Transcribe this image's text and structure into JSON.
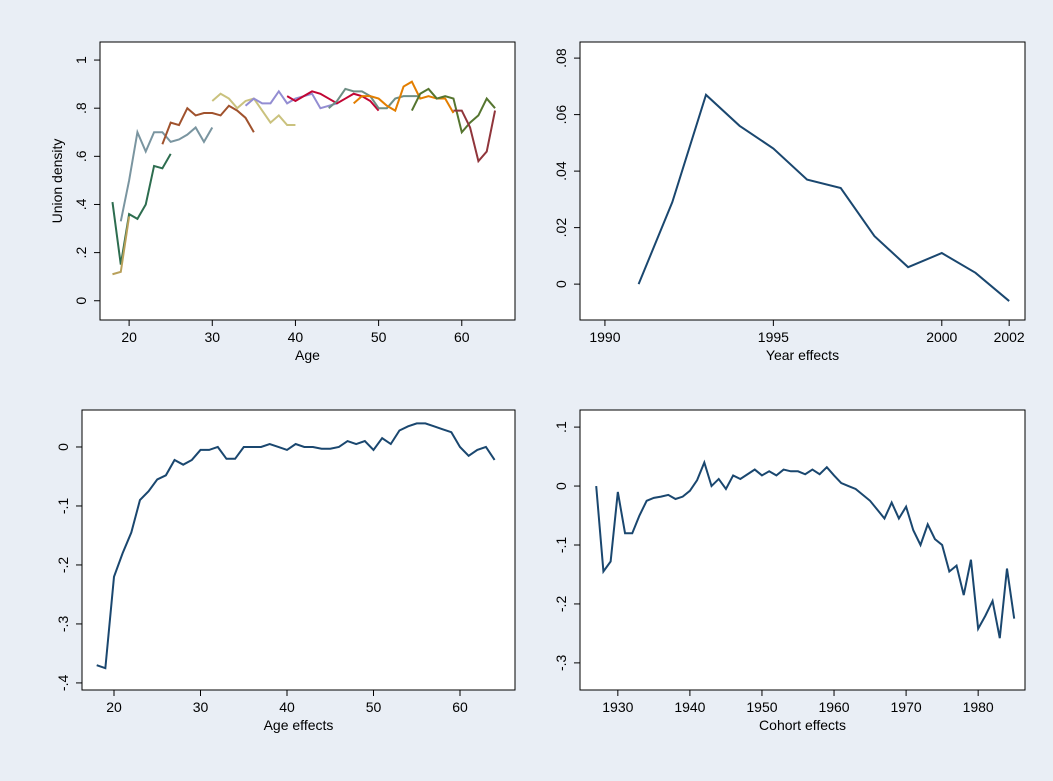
{
  "chart_data": [
    {
      "type": "line",
      "xlabel": "Age",
      "ylabel": "Union density",
      "xlim": [
        16.5,
        66.4
      ],
      "ylim": [
        -0.08,
        1.075
      ],
      "xticks": [
        20,
        30,
        40,
        50,
        60
      ],
      "yticks": [
        0,
        {
          "value": 0.2,
          "label": ".2"
        },
        {
          "value": 0.4,
          "label": ".4"
        },
        {
          "value": 0.6,
          "label": ".6"
        },
        {
          "value": 0.8,
          "label": ".8"
        },
        1
      ],
      "series": [
        {
          "color": "#2d6d4f",
          "x": [
            18,
            19,
            20,
            21,
            22,
            23,
            24,
            25
          ],
          "values": [
            0.41,
            0.15,
            0.36,
            0.34,
            0.4,
            0.56,
            0.55,
            0.61
          ]
        },
        {
          "color": "#b8a05a",
          "x": [
            18,
            19,
            20
          ],
          "values": [
            0.11,
            0.12,
            0.35
          ]
        },
        {
          "color": "#7a95a0",
          "x": [
            19,
            20,
            21,
            22,
            23,
            24,
            25,
            26,
            27,
            28,
            29,
            30
          ],
          "values": [
            0.33,
            0.5,
            0.7,
            0.62,
            0.7,
            0.7,
            0.66,
            0.67,
            0.69,
            0.72,
            0.66,
            0.72
          ]
        },
        {
          "color": "#a0522d",
          "x": [
            24,
            25,
            26,
            27,
            28,
            29,
            30,
            31,
            32,
            33,
            34,
            35
          ],
          "values": [
            0.65,
            0.74,
            0.73,
            0.8,
            0.77,
            0.78,
            0.78,
            0.77,
            0.81,
            0.79,
            0.76,
            0.7
          ]
        },
        {
          "color": "#cac27e",
          "x": [
            30,
            31,
            32,
            33,
            34,
            35,
            36,
            37,
            38,
            39,
            40
          ],
          "values": [
            0.83,
            0.86,
            0.84,
            0.8,
            0.83,
            0.84,
            0.79,
            0.74,
            0.77,
            0.73,
            0.73
          ]
        },
        {
          "color": "#938dd2",
          "x": [
            34,
            35,
            36,
            37,
            38,
            39,
            40,
            41,
            42,
            43,
            44,
            45
          ],
          "values": [
            0.81,
            0.84,
            0.82,
            0.82,
            0.87,
            0.82,
            0.84,
            0.85,
            0.86,
            0.8,
            0.81,
            0.82
          ]
        },
        {
          "color": "#c10534",
          "x": [
            39,
            40,
            41,
            42,
            43,
            44,
            45,
            46,
            47,
            48,
            49,
            50
          ],
          "values": [
            0.85,
            0.83,
            0.85,
            0.87,
            0.86,
            0.84,
            0.82,
            0.84,
            0.86,
            0.85,
            0.83,
            0.79
          ]
        },
        {
          "color": "#6e8e84",
          "x": [
            44,
            45,
            46,
            47,
            48,
            49,
            50,
            51,
            52,
            53,
            54,
            55
          ],
          "values": [
            0.8,
            0.83,
            0.88,
            0.87,
            0.87,
            0.85,
            0.8,
            0.8,
            0.84,
            0.85,
            0.85,
            0.85
          ]
        },
        {
          "color": "#e37e00",
          "x": [
            47,
            48,
            49,
            50,
            51,
            52,
            53,
            54,
            55,
            56,
            57,
            58,
            59
          ],
          "values": [
            0.82,
            0.85,
            0.85,
            0.84,
            0.81,
            0.79,
            0.89,
            0.91,
            0.84,
            0.85,
            0.84,
            0.84,
            0.78
          ]
        },
        {
          "color": "#55752f",
          "x": [
            54,
            55,
            56,
            57,
            58,
            59,
            60,
            61,
            62,
            63,
            64
          ],
          "values": [
            0.79,
            0.86,
            0.88,
            0.84,
            0.85,
            0.84,
            0.7,
            0.74,
            0.77,
            0.84,
            0.8
          ]
        },
        {
          "color": "#90353b",
          "x": [
            59,
            60,
            61,
            62,
            63,
            64
          ],
          "values": [
            0.79,
            0.79,
            0.72,
            0.58,
            0.62,
            0.79
          ]
        }
      ]
    },
    {
      "type": "line",
      "xlabel": "Year effects",
      "xlim": [
        1989.26,
        2002.47
      ],
      "ylim": [
        -0.0127,
        0.0857
      ],
      "xticks": [
        1990,
        1995,
        2000,
        2002
      ],
      "yticks": [
        0,
        {
          "value": 0.02,
          "label": ".02"
        },
        {
          "value": 0.04,
          "label": ".04"
        },
        {
          "value": 0.06,
          "label": ".06"
        },
        {
          "value": 0.08,
          "label": ".08"
        }
      ],
      "series": [
        {
          "color": "#1a476f",
          "x": [
            1991,
            1992,
            1993,
            1994,
            1995,
            1996,
            1997,
            1998,
            1999,
            2000,
            2001,
            2002
          ],
          "values": [
            0,
            0.029,
            0.067,
            0.056,
            0.048,
            0.037,
            0.034,
            0.017,
            0.006,
            0.011,
            0.004,
            -0.006
          ]
        }
      ]
    },
    {
      "type": "line",
      "xlabel": "Age effects",
      "xlim": [
        16.3,
        66.36
      ],
      "ylim": [
        -0.412,
        0.0627
      ],
      "xticks": [
        20,
        30,
        40,
        50,
        60
      ],
      "yticks": [
        {
          "value": -0.4,
          "label": "-.4"
        },
        {
          "value": -0.3,
          "label": "-.3"
        },
        {
          "value": -0.2,
          "label": "-.2"
        },
        {
          "value": -0.1,
          "label": "-.1"
        },
        0
      ],
      "series": [
        {
          "color": "#1a476f",
          "x": [
            18,
            19,
            20,
            21,
            22,
            23,
            24,
            25,
            26,
            27,
            28,
            29,
            30,
            31,
            32,
            33,
            34,
            35,
            36,
            37,
            38,
            39,
            40,
            41,
            42,
            43,
            44,
            45,
            46,
            47,
            48,
            49,
            50,
            51,
            52,
            53,
            54,
            55,
            56,
            57,
            58,
            59,
            60,
            61,
            62,
            63,
            64
          ],
          "values": [
            -0.37,
            -0.375,
            -0.22,
            -0.18,
            -0.145,
            -0.09,
            -0.075,
            -0.055,
            -0.048,
            -0.022,
            -0.03,
            -0.022,
            -0.005,
            -0.005,
            0.0,
            -0.02,
            -0.02,
            0.0,
            0.0,
            0.0,
            0.005,
            0.0,
            -0.005,
            0.005,
            0.0,
            0.0,
            -0.003,
            -0.003,
            0.0,
            0.01,
            0.005,
            0.01,
            -0.005,
            0.015,
            0.005,
            0.028,
            0.035,
            0.04,
            0.04,
            0.035,
            0.03,
            0.025,
            0.0,
            -0.015,
            -0.005,
            0.0,
            -0.022
          ]
        }
      ]
    },
    {
      "type": "line",
      "xlabel": "Cohort effects",
      "xlim": [
        1924.75,
        1986.5
      ],
      "ylim": [
        -0.346,
        0.129
      ],
      "xticks": [
        1930,
        1940,
        1950,
        1960,
        1970,
        1980
      ],
      "yticks": [
        {
          "value": -0.3,
          "label": "-.3"
        },
        {
          "value": -0.2,
          "label": "-.2"
        },
        {
          "value": -0.1,
          "label": "-.1"
        },
        0,
        {
          "value": 0.1,
          "label": ".1"
        }
      ],
      "series": [
        {
          "color": "#1a476f",
          "x": [
            1927,
            1928,
            1929,
            1930,
            1931,
            1932,
            1933,
            1934,
            1935,
            1936,
            1937,
            1938,
            1939,
            1940,
            1941,
            1942,
            1943,
            1944,
            1945,
            1946,
            1947,
            1948,
            1949,
            1950,
            1951,
            1952,
            1953,
            1954,
            1955,
            1956,
            1957,
            1958,
            1959,
            1960,
            1961,
            1962,
            1963,
            1964,
            1965,
            1966,
            1967,
            1968,
            1969,
            1970,
            1971,
            1972,
            1973,
            1974,
            1975,
            1976,
            1977,
            1978,
            1979,
            1980,
            1981,
            1982,
            1983,
            1984,
            1985
          ],
          "values": [
            0.0,
            -0.145,
            -0.128,
            -0.01,
            -0.08,
            -0.08,
            -0.05,
            -0.025,
            -0.02,
            -0.018,
            -0.015,
            -0.022,
            -0.018,
            -0.008,
            0.01,
            0.04,
            0.0,
            0.012,
            -0.005,
            0.018,
            0.012,
            0.02,
            0.028,
            0.018,
            0.025,
            0.018,
            0.028,
            0.025,
            0.025,
            0.02,
            0.028,
            0.02,
            0.032,
            0.018,
            0.005,
            0.0,
            -0.005,
            -0.015,
            -0.025,
            -0.04,
            -0.055,
            -0.028,
            -0.055,
            -0.035,
            -0.075,
            -0.1,
            -0.065,
            -0.09,
            -0.1,
            -0.145,
            -0.135,
            -0.185,
            -0.125,
            -0.242,
            -0.22,
            -0.195,
            -0.258,
            -0.14,
            -0.225
          ]
        }
      ]
    }
  ]
}
